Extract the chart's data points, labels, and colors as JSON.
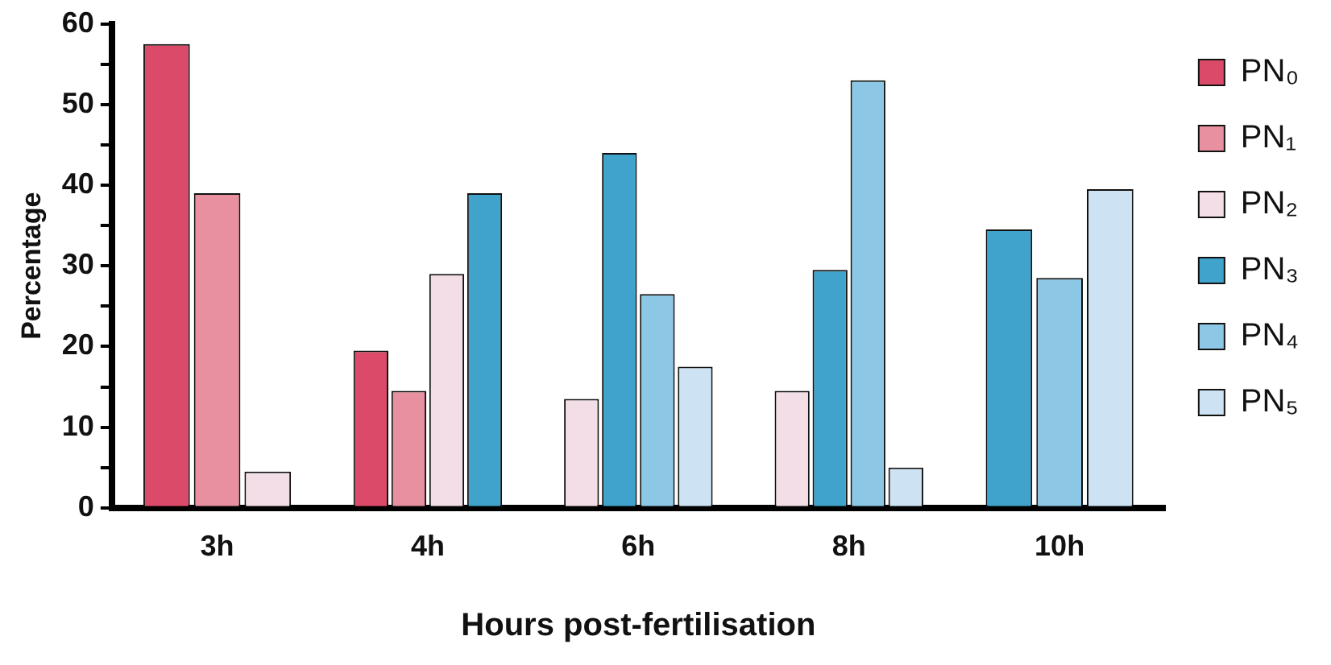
{
  "chart_data": {
    "type": "bar",
    "xlabel": "Hours post-fertilisation",
    "ylabel": "Percentage",
    "categories": [
      "3h",
      "4h",
      "6h",
      "8h",
      "10h"
    ],
    "series": [
      {
        "name": "PN₀",
        "color": "#dc4a6a",
        "values": [
          57.5,
          19.5,
          null,
          null,
          null
        ]
      },
      {
        "name": "PN₁",
        "color": "#e890a0",
        "values": [
          39,
          14.5,
          null,
          null,
          null
        ]
      },
      {
        "name": "PN₂",
        "color": "#f3dde6",
        "values": [
          4.5,
          29,
          13.5,
          14.5,
          null
        ]
      },
      {
        "name": "PN₃",
        "color": "#3fa3cc",
        "values": [
          null,
          39,
          44,
          29.5,
          34.5
        ]
      },
      {
        "name": "PN₄",
        "color": "#8cc8e6",
        "values": [
          null,
          null,
          26.5,
          53,
          28.5
        ]
      },
      {
        "name": "PN₅",
        "color": "#cde3f3",
        "values": [
          null,
          null,
          17.5,
          5,
          39.5
        ]
      }
    ],
    "ylim": [
      0,
      60
    ],
    "yticks": [
      0,
      {
        "value": 5,
        "label": null
      },
      10,
      {
        "value": 15,
        "label": null
      },
      20,
      {
        "value": 25,
        "label": null
      },
      30,
      {
        "value": 35,
        "label": null
      },
      40,
      {
        "value": 45,
        "label": null
      },
      50,
      {
        "value": 55,
        "label": null
      },
      60
    ],
    "grid": false,
    "legend": "right"
  }
}
